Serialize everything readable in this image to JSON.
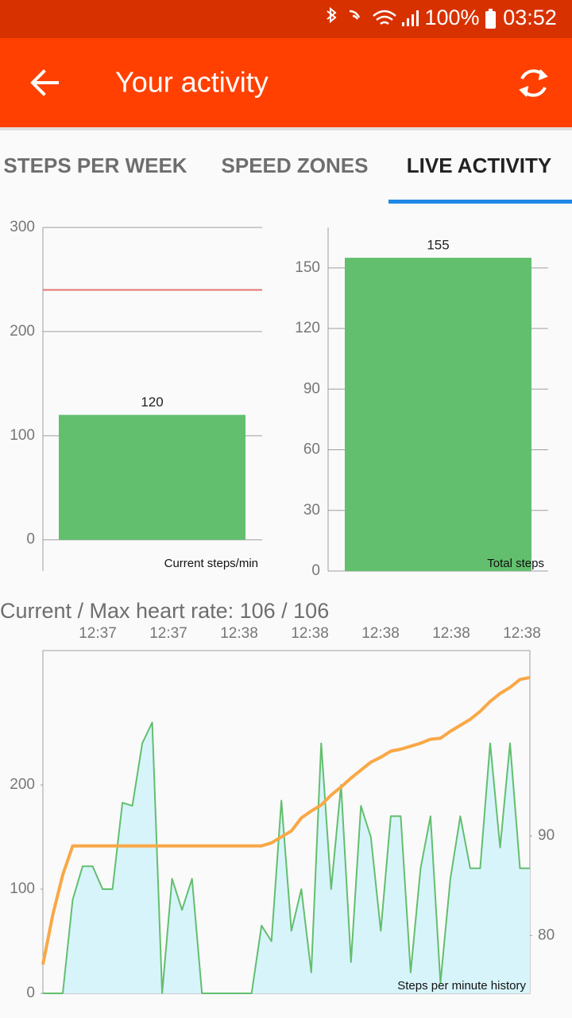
{
  "status_bar": {
    "battery": "100%",
    "time": "03:52"
  },
  "app_bar": {
    "title": "Your activity"
  },
  "tabs": {
    "items": [
      "STEPS PER WEEK",
      "SPEED ZONES",
      "LIVE ACTIVITY"
    ],
    "selected": 2
  },
  "chart_data": [
    {
      "type": "bar",
      "description": "Current steps/min",
      "values": [
        120
      ],
      "color": "#62bf6e",
      "ylim": [
        -30,
        300
      ],
      "yticks": [
        0,
        100,
        200,
        300
      ],
      "grid": true,
      "limit_line": {
        "value": 240,
        "color": "#e57373"
      }
    },
    {
      "type": "bar",
      "description": "Total steps",
      "values": [
        155
      ],
      "color": "#62bf6e",
      "ylim": [
        0,
        170
      ],
      "yticks": [
        0,
        30,
        60,
        90,
        120,
        150
      ],
      "grid": true
    },
    {
      "type": "line",
      "title": "Current / Max heart rate: 106 / 106",
      "description": "Steps per minute history",
      "x_labels": [
        "12:37",
        "12:37",
        "12:38",
        "12:38",
        "12:38",
        "12:38",
        "12:38"
      ],
      "series": [
        {
          "color": "#62bf6e",
          "fill": "#d8f4fb",
          "values": [
            0,
            0,
            0,
            90,
            122,
            122,
            100,
            100,
            183,
            180,
            240,
            260,
            0,
            110,
            80,
            110,
            0,
            0,
            0,
            0,
            0,
            0,
            65,
            50,
            185,
            60,
            100,
            20,
            240,
            100,
            200,
            30,
            180,
            150,
            60,
            170,
            170,
            20,
            120,
            170,
            10,
            110,
            170,
            120,
            120,
            240,
            140,
            240,
            120,
            120
          ]
        },
        {
          "color": "#f9a846",
          "axis": "y2",
          "values": [
            77.1,
            82.1,
            86.1,
            89,
            89,
            89,
            89,
            89,
            89,
            89,
            89,
            89,
            89,
            89,
            89,
            89,
            89,
            89,
            89,
            89,
            89,
            89,
            89,
            89.3,
            89.9,
            90.5,
            91.8,
            92.5,
            93.1,
            94.1,
            94.9,
            95.8,
            96.6,
            97.4,
            97.9,
            98.5,
            98.7,
            99,
            99.3,
            99.7,
            99.8,
            100.5,
            101.1,
            101.7,
            102.5,
            103.5,
            104.3,
            104.9,
            105.7,
            105.9
          ]
        }
      ],
      "ylim": [
        0,
        329
      ],
      "yticks": [
        0,
        100,
        200
      ],
      "y2lim": [
        74.2,
        108.6
      ],
      "y2ticks": [
        80,
        90
      ]
    }
  ]
}
